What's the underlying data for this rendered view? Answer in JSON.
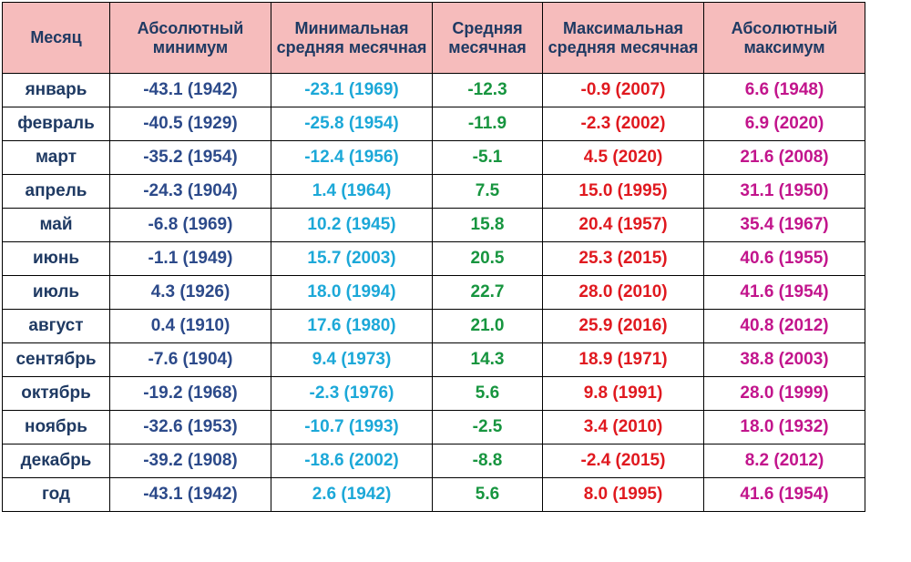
{
  "table": {
    "colors": {
      "header_bg": "#f6bcbc",
      "month": "#1f3a63",
      "abs_min": "#2c4a8a",
      "min_mean": "#1ca8d8",
      "mean": "#17953f",
      "max_mean": "#e0191f",
      "abs_max": "#c2158c"
    },
    "headers": [
      "Месяц",
      "Абсолютный минимум",
      "Минимальная средняя месячная",
      "Средняя месячная",
      "Максимальная средняя месячная",
      "Абсолютный максимум"
    ],
    "rows": [
      [
        "январь",
        "-43.1 (1942)",
        "-23.1 (1969)",
        "-12.3",
        "-0.9 (2007)",
        "6.6 (1948)"
      ],
      [
        "февраль",
        "-40.5 (1929)",
        "-25.8 (1954)",
        "-11.9",
        "-2.3 (2002)",
        "6.9 (2020)"
      ],
      [
        "март",
        "-35.2 (1954)",
        "-12.4 (1956)",
        "-5.1",
        "4.5 (2020)",
        "21.6 (2008)"
      ],
      [
        "апрель",
        "-24.3 (1904)",
        "1.4 (1964)",
        "7.5",
        "15.0 (1995)",
        "31.1 (1950)"
      ],
      [
        "май",
        "-6.8 (1969)",
        "10.2 (1945)",
        "15.8",
        "20.4 (1957)",
        "35.4 (1967)"
      ],
      [
        "июнь",
        "-1.1 (1949)",
        "15.7 (2003)",
        "20.5",
        "25.3 (2015)",
        "40.6 (1955)"
      ],
      [
        "июль",
        "4.3 (1926)",
        "18.0 (1994)",
        "22.7",
        "28.0 (2010)",
        "41.6 (1954)"
      ],
      [
        "август",
        "0.4 (1910)",
        "17.6 (1980)",
        "21.0",
        "25.9 (2016)",
        "40.8 (2012)"
      ],
      [
        "сентябрь",
        "-7.6 (1904)",
        "9.4 (1973)",
        "14.3",
        "18.9 (1971)",
        "38.8 (2003)"
      ],
      [
        "октябрь",
        "-19.2 (1968)",
        "-2.3 (1976)",
        "5.6",
        "9.8 (1991)",
        "28.0 (1999)"
      ],
      [
        "ноябрь",
        "-32.6 (1953)",
        "-10.7 (1993)",
        "-2.5",
        "3.4 (2010)",
        "18.0 (1932)"
      ],
      [
        "декабрь",
        "-39.2 (1908)",
        "-18.6 (2002)",
        "-8.8",
        "-2.4 (2015)",
        "8.2 (2012)"
      ],
      [
        "год",
        "-43.1 (1942)",
        "2.6 (1942)",
        "5.6",
        "8.0 (1995)",
        "41.6 (1954)"
      ]
    ]
  }
}
